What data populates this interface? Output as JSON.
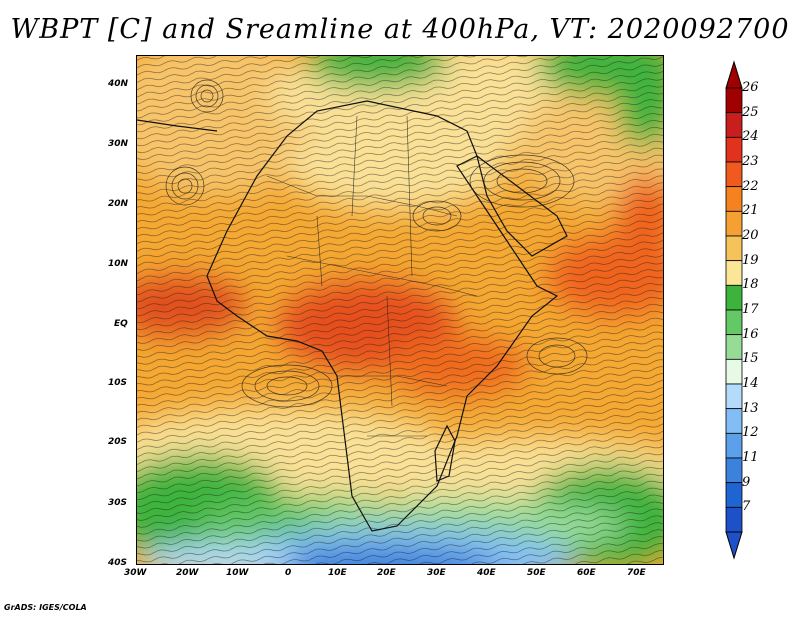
{
  "title": "WBPT [C] and Sreamline at 400hPa, VT: 2020092700",
  "credit": "GrADS: IGES/COLA",
  "map": {
    "lat_labels": [
      "40N",
      "30N",
      "20N",
      "10N",
      "EQ",
      "10S",
      "20S",
      "30S",
      "40S"
    ],
    "lon_labels": [
      "30W",
      "20W",
      "10W",
      "0",
      "10E",
      "20E",
      "30E",
      "40E",
      "50E",
      "60E",
      "70E"
    ],
    "lat_range": [
      -40,
      45
    ],
    "lon_range": [
      -30,
      75
    ]
  },
  "colorbar": {
    "labels": [
      "26",
      "25",
      "24",
      "23",
      "22",
      "21",
      "20",
      "19",
      "18",
      "17",
      "16",
      "15",
      "14",
      "13",
      "12",
      "11",
      "9",
      "7"
    ],
    "colors": [
      "#a00000",
      "#c81e1e",
      "#e1321e",
      "#f05a1e",
      "#f5821e",
      "#f5a032",
      "#f5c35a",
      "#fae696",
      "#3cb43c",
      "#64c864",
      "#96dc96",
      "#e6fae6",
      "#b4dcfa",
      "#82bef5",
      "#5aa0eb",
      "#3c82dc",
      "#1e64d2",
      "#1e50c8"
    ]
  }
}
